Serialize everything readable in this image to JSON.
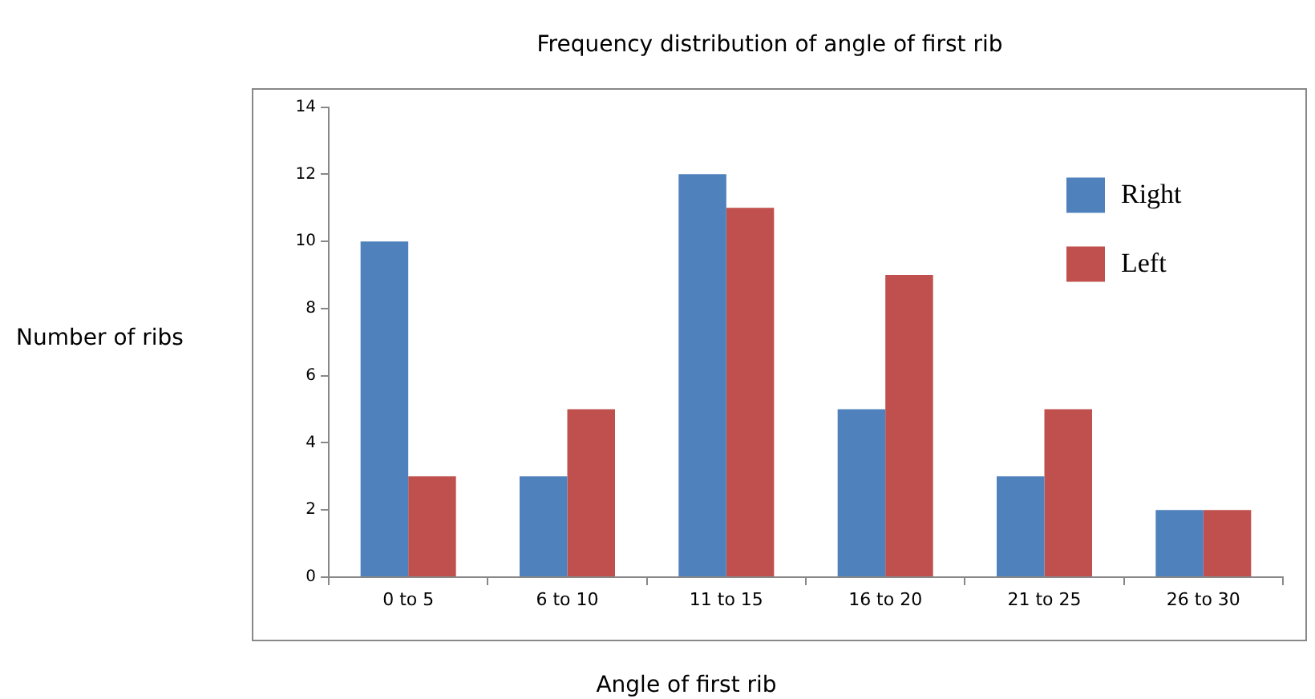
{
  "chart_data": {
    "type": "bar",
    "title": "Frequency distribution of angle of first rib",
    "xlabel": "Angle of first rib",
    "ylabel": "Number of ribs",
    "categories": [
      "0 to 5",
      "6 to 10",
      "11 to 15",
      "16 to 20",
      "21 to 25",
      "26 to 30"
    ],
    "series": [
      {
        "name": "Right",
        "color": "#4f81bd",
        "values": [
          10,
          3,
          12,
          5,
          3,
          2
        ]
      },
      {
        "name": "Left",
        "color": "#c0504d",
        "values": [
          3,
          5,
          11,
          9,
          5,
          2
        ]
      }
    ],
    "ylim": [
      0,
      14
    ],
    "yticks": [
      0,
      2,
      4,
      6,
      8,
      10,
      12,
      14
    ],
    "grid": false,
    "legend": "top right"
  }
}
